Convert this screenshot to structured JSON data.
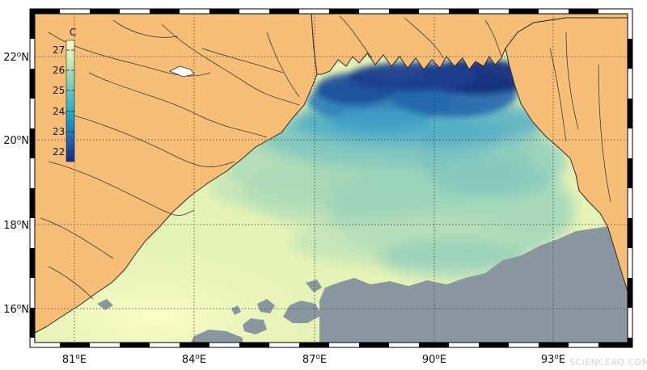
{
  "map": {
    "variable_unit": "C",
    "colors": {
      "land": "#f7be78",
      "no_data": "#8b979f",
      "coast": "#2b2b2b",
      "grid": "#3a3a3a"
    },
    "colorbar": {
      "unit_label": "C",
      "ticks": [
        "27",
        "26",
        "25",
        "24",
        "23",
        "22"
      ],
      "stops": [
        "#ffffcc",
        "#c7e9b4",
        "#7fcdbb",
        "#41b6c4",
        "#1d91c0",
        "#225ea8",
        "#0c2c84"
      ]
    },
    "lon_labels": [
      {
        "deg": "81",
        "hemi": "E"
      },
      {
        "deg": "84",
        "hemi": "E"
      },
      {
        "deg": "87",
        "hemi": "E"
      },
      {
        "deg": "90",
        "hemi": "E"
      },
      {
        "deg": "93",
        "hemi": "E"
      }
    ],
    "lat_labels": [
      {
        "deg": "22",
        "hemi": "N"
      },
      {
        "deg": "20",
        "hemi": "N"
      },
      {
        "deg": "18",
        "hemi": "N"
      },
      {
        "deg": "16",
        "hemi": "N"
      }
    ],
    "watermark": "SCIENCEAQ.COM"
  }
}
